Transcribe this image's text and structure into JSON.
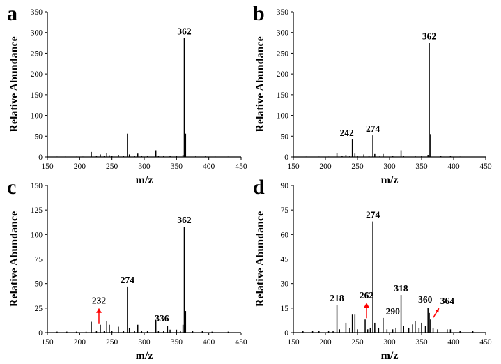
{
  "chart_data": [
    {
      "panel": "a",
      "type": "bar",
      "xlabel": "m/z",
      "ylabel": "Relative Abundance",
      "xlim": [
        150,
        450
      ],
      "ylim": [
        0,
        350
      ],
      "xticks": [
        150,
        200,
        250,
        300,
        350,
        400,
        450
      ],
      "yticks": [
        0,
        50,
        100,
        150,
        200,
        250,
        300,
        350
      ],
      "peaks": [
        [
          165,
          1
        ],
        [
          178,
          1
        ],
        [
          195,
          1
        ],
        [
          205,
          1
        ],
        [
          218,
          12
        ],
        [
          226,
          2
        ],
        [
          232,
          6
        ],
        [
          238,
          2
        ],
        [
          242,
          9
        ],
        [
          246,
          4
        ],
        [
          250,
          2
        ],
        [
          260,
          5
        ],
        [
          268,
          3
        ],
        [
          274,
          56
        ],
        [
          277,
          6
        ],
        [
          285,
          2
        ],
        [
          290,
          8
        ],
        [
          296,
          2
        ],
        [
          305,
          3
        ],
        [
          318,
          16
        ],
        [
          322,
          3
        ],
        [
          330,
          2
        ],
        [
          340,
          3
        ],
        [
          350,
          2
        ],
        [
          360,
          5
        ],
        [
          362,
          287
        ],
        [
          364,
          56
        ],
        [
          380,
          2
        ],
        [
          395,
          2
        ],
        [
          410,
          1
        ],
        [
          430,
          1
        ]
      ],
      "annotations": [
        {
          "label": "362",
          "x": 362,
          "y": 287
        }
      ]
    },
    {
      "panel": "b",
      "type": "bar",
      "xlabel": "m/z",
      "ylabel": "Relative Abundance",
      "xlim": [
        150,
        450
      ],
      "ylim": [
        0,
        350
      ],
      "xticks": [
        150,
        200,
        250,
        300,
        350,
        400,
        450
      ],
      "yticks": [
        0,
        50,
        100,
        150,
        200,
        250,
        300,
        350
      ],
      "peaks": [
        [
          170,
          1
        ],
        [
          190,
          1
        ],
        [
          205,
          1
        ],
        [
          218,
          10
        ],
        [
          226,
          3
        ],
        [
          232,
          5
        ],
        [
          238,
          2
        ],
        [
          242,
          42
        ],
        [
          246,
          8
        ],
        [
          250,
          3
        ],
        [
          260,
          6
        ],
        [
          268,
          3
        ],
        [
          274,
          52
        ],
        [
          277,
          7
        ],
        [
          285,
          2
        ],
        [
          290,
          7
        ],
        [
          305,
          3
        ],
        [
          318,
          16
        ],
        [
          322,
          3
        ],
        [
          340,
          3
        ],
        [
          350,
          2
        ],
        [
          360,
          5
        ],
        [
          362,
          275
        ],
        [
          364,
          55
        ],
        [
          380,
          2
        ],
        [
          395,
          2
        ],
        [
          410,
          1
        ]
      ],
      "annotations": [
        {
          "label": "242",
          "x": 242,
          "y": 42
        },
        {
          "label": "274",
          "x": 274,
          "y": 52
        },
        {
          "label": "362",
          "x": 362,
          "y": 275
        }
      ]
    },
    {
      "panel": "c",
      "type": "bar",
      "xlabel": "m/z",
      "ylabel": "Relative Abundance",
      "xlim": [
        150,
        450
      ],
      "ylim": [
        0,
        150
      ],
      "xticks": [
        150,
        200,
        250,
        300,
        350,
        400,
        450
      ],
      "yticks": [
        0,
        25,
        50,
        75,
        100,
        125,
        150
      ],
      "peaks": [
        [
          165,
          1
        ],
        [
          180,
          1
        ],
        [
          195,
          1
        ],
        [
          210,
          1
        ],
        [
          218,
          11
        ],
        [
          226,
          2
        ],
        [
          232,
          8
        ],
        [
          238,
          2
        ],
        [
          242,
          12
        ],
        [
          246,
          8
        ],
        [
          250,
          2
        ],
        [
          260,
          6
        ],
        [
          268,
          2
        ],
        [
          274,
          47
        ],
        [
          277,
          5
        ],
        [
          285,
          2
        ],
        [
          290,
          8
        ],
        [
          296,
          2
        ],
        [
          305,
          2
        ],
        [
          318,
          13
        ],
        [
          322,
          2
        ],
        [
          330,
          2
        ],
        [
          336,
          7
        ],
        [
          340,
          3
        ],
        [
          350,
          3
        ],
        [
          356,
          2
        ],
        [
          360,
          8
        ],
        [
          362,
          108
        ],
        [
          364,
          22
        ],
        [
          375,
          2
        ],
        [
          390,
          2
        ],
        [
          405,
          1
        ],
        [
          430,
          1
        ]
      ],
      "annotations": [
        {
          "label": "232",
          "x": 232,
          "y": 8,
          "arrow": true
        },
        {
          "label": "274",
          "x": 274,
          "y": 47
        },
        {
          "label": "336",
          "x": 336,
          "y": 7
        },
        {
          "label": "362",
          "x": 362,
          "y": 108
        }
      ]
    },
    {
      "panel": "d",
      "type": "bar",
      "xlabel": "m/z",
      "ylabel": "Relative Abundance",
      "xlim": [
        150,
        450
      ],
      "ylim": [
        0,
        90
      ],
      "xticks": [
        150,
        200,
        250,
        300,
        350,
        400,
        450
      ],
      "yticks": [
        0,
        15,
        30,
        45,
        60,
        75,
        90
      ],
      "peaks": [
        [
          165,
          1
        ],
        [
          180,
          1
        ],
        [
          190,
          1
        ],
        [
          205,
          1
        ],
        [
          212,
          1
        ],
        [
          218,
          17
        ],
        [
          222,
          2
        ],
        [
          232,
          6
        ],
        [
          238,
          3
        ],
        [
          242,
          11
        ],
        [
          246,
          11
        ],
        [
          250,
          2
        ],
        [
          262,
          8
        ],
        [
          266,
          2
        ],
        [
          270,
          3
        ],
        [
          274,
          68
        ],
        [
          277,
          6
        ],
        [
          283,
          3
        ],
        [
          290,
          9
        ],
        [
          296,
          2
        ],
        [
          305,
          2
        ],
        [
          310,
          3
        ],
        [
          318,
          23
        ],
        [
          322,
          4
        ],
        [
          330,
          3
        ],
        [
          336,
          5
        ],
        [
          340,
          7
        ],
        [
          346,
          3
        ],
        [
          350,
          6
        ],
        [
          356,
          4
        ],
        [
          360,
          15
        ],
        [
          362,
          12
        ],
        [
          364,
          8
        ],
        [
          368,
          3
        ],
        [
          375,
          2
        ],
        [
          390,
          2
        ],
        [
          395,
          2
        ],
        [
          410,
          1
        ],
        [
          430,
          1
        ]
      ],
      "annotations": [
        {
          "label": "218",
          "x": 218,
          "y": 17
        },
        {
          "label": "262",
          "x": 262,
          "y": 8,
          "arrow": true
        },
        {
          "label": "274",
          "x": 274,
          "y": 68
        },
        {
          "label": "290",
          "x": 290,
          "y": 9
        },
        {
          "label": "318",
          "x": 318,
          "y": 23
        },
        {
          "label": "360",
          "x": 360,
          "y": 15
        },
        {
          "label": "364",
          "x": 364,
          "y": 8,
          "arrow": true
        }
      ]
    }
  ]
}
